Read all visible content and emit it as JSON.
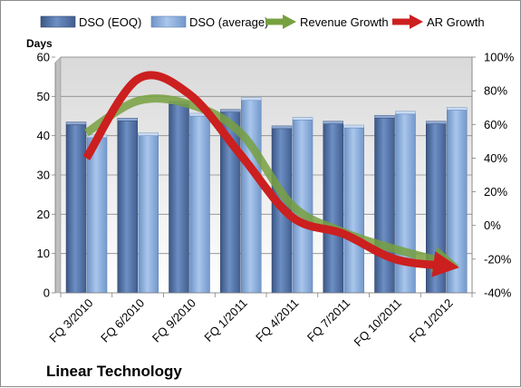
{
  "chart_data": {
    "type": "bar",
    "categories": [
      "FQ 3/2010",
      "FQ 6/2010",
      "FQ 9/2010",
      "FQ 1/2011",
      "FQ 4/2011",
      "FQ 7/2011",
      "FQ 10/2011",
      "FQ 1/2012"
    ],
    "series": [
      {
        "name": "DSO (EOQ)",
        "type": "bar",
        "axis": "left",
        "values": [
          42.8,
          43.8,
          48.0,
          46.0,
          41.8,
          43.0,
          44.5,
          43.0
        ]
      },
      {
        "name": "DSO (average)",
        "type": "bar",
        "axis": "left",
        "values": [
          39.5,
          40.0,
          45.0,
          49.0,
          44.0,
          42.0,
          45.5,
          46.5
        ]
      },
      {
        "name": "Revenue Growth",
        "type": "line",
        "axis": "right",
        "unit": "%",
        "values": [
          55,
          74,
          72,
          55,
          12,
          -4,
          -14,
          -22
        ]
      },
      {
        "name": "AR Growth",
        "type": "line",
        "axis": "right",
        "unit": "%",
        "values": [
          40,
          87,
          78,
          42,
          5,
          -5,
          -20,
          -24
        ]
      }
    ],
    "ylabel": "Days",
    "ylim": [
      0,
      60
    ],
    "yticks": [
      0,
      10,
      20,
      30,
      40,
      50,
      60
    ],
    "y2lim": [
      -40,
      100
    ],
    "y2ticks": [
      "-40%",
      "-20%",
      "0%",
      "20%",
      "40%",
      "60%",
      "80%",
      "100%"
    ],
    "y2tick_values": [
      -40,
      -20,
      0,
      20,
      40,
      60,
      80,
      100
    ],
    "legend_position": "top",
    "grid": true,
    "annotation": "Linear Technology",
    "colors": {
      "dso_eoq": "#4f6fa6",
      "dso_avg": "#8fb3e0",
      "revenue": "#77a040",
      "ar": "#cc1f1f"
    }
  }
}
